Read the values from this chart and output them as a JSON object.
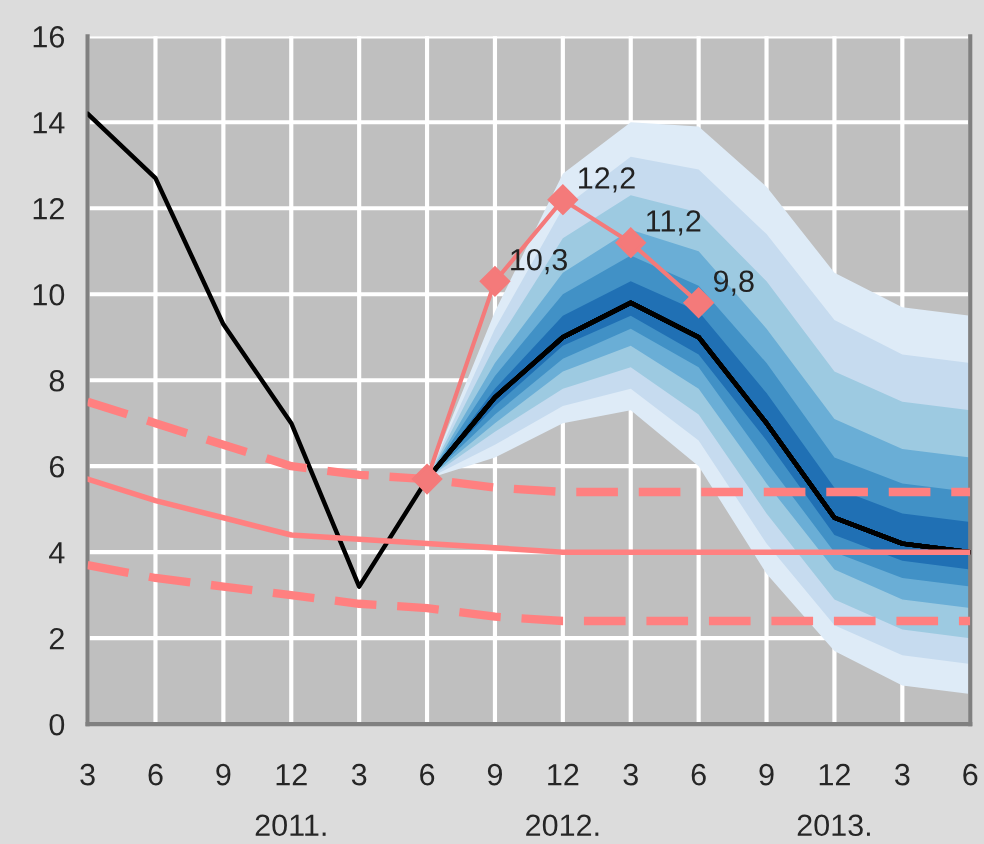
{
  "chart_data": {
    "type": "line",
    "categories": [
      "3",
      "6",
      "9",
      "12\n2011.",
      "3",
      "6",
      "9",
      "12\n2012.",
      "3",
      "6",
      "9",
      "12\n2013.",
      "3",
      "6"
    ],
    "ylim": [
      0,
      16
    ],
    "yticks": [
      0,
      2,
      4,
      6,
      8,
      10,
      12,
      14,
      16
    ],
    "grid": true,
    "series": [
      {
        "type": "line",
        "color": "#000000",
        "line_style": "solid",
        "values": [
          null,
          null,
          null,
          null,
          null,
          5.7,
          7.6,
          9.0,
          9.8,
          9.0,
          7.0,
          4.8,
          4.2,
          4.0
        ],
        "upper": [
          null,
          null,
          null,
          null,
          null,
          5.7,
          9.6,
          12.8,
          14.0,
          13.9,
          12.5,
          10.5,
          9.7,
          9.5
        ],
        "lower": [
          null,
          null,
          null,
          null,
          null,
          5.7,
          6.2,
          7.0,
          7.3,
          6.0,
          3.5,
          1.7,
          0.9,
          0.7
        ]
      },
      {
        "type": "line",
        "color": "#000000",
        "line_style": "solid",
        "values": [
          null,
          null,
          null,
          null,
          null,
          5.7,
          7.6,
          9.0,
          9.8,
          9.0,
          7.0,
          4.8,
          4.2,
          4.0
        ],
        "upper": [
          null,
          null,
          null,
          null,
          null,
          5.7,
          9.2,
          12.0,
          13.2,
          12.9,
          11.4,
          9.4,
          8.6,
          8.4
        ],
        "lower": [
          null,
          null,
          null,
          null,
          null,
          5.7,
          6.5,
          7.4,
          7.8,
          6.6,
          4.2,
          2.3,
          1.6,
          1.4
        ]
      },
      {
        "type": "line",
        "color": "#000000",
        "line_style": "solid",
        "values": [
          null,
          null,
          null,
          null,
          null,
          5.7,
          7.6,
          9.0,
          9.8,
          9.0,
          7.0,
          4.8,
          4.2,
          4.0
        ],
        "upper": [
          null,
          null,
          null,
          null,
          null,
          5.7,
          8.8,
          11.3,
          12.3,
          11.9,
          10.3,
          8.2,
          7.5,
          7.3
        ],
        "lower": [
          null,
          null,
          null,
          null,
          null,
          5.7,
          6.8,
          7.8,
          8.3,
          7.2,
          4.9,
          2.9,
          2.2,
          2.0
        ]
      },
      {
        "type": "line",
        "color": "#000000",
        "line_style": "solid",
        "values": [
          null,
          null,
          null,
          null,
          null,
          5.7,
          7.6,
          9.0,
          9.8,
          9.0,
          7.0,
          4.8,
          4.2,
          4.0
        ],
        "upper": [
          null,
          null,
          null,
          null,
          null,
          5.7,
          8.4,
          10.5,
          11.5,
          11.0,
          9.2,
          7.1,
          6.4,
          6.2
        ],
        "lower": [
          null,
          null,
          null,
          null,
          null,
          5.7,
          7.0,
          8.2,
          8.8,
          7.8,
          5.6,
          3.6,
          2.9,
          2.7
        ]
      },
      {
        "type": "line",
        "color": "#000000",
        "line_style": "solid",
        "values": [
          null,
          null,
          null,
          null,
          null,
          5.7,
          7.6,
          9.0,
          9.8,
          9.0,
          7.0,
          4.8,
          4.2,
          4.0
        ],
        "upper": [
          null,
          null,
          null,
          null,
          null,
          5.7,
          8.1,
          10.0,
          10.9,
          10.2,
          8.4,
          6.2,
          5.6,
          5.4
        ],
        "lower": [
          null,
          null,
          null,
          null,
          null,
          5.7,
          7.2,
          8.5,
          9.2,
          8.3,
          6.1,
          4.0,
          3.4,
          3.2
        ]
      },
      {
        "type": "line",
        "color": "#000000",
        "line_style": "solid",
        "values": [
          null,
          null,
          null,
          null,
          null,
          5.7,
          7.6,
          9.0,
          9.8,
          9.0,
          7.0,
          4.8,
          4.2,
          4.0
        ],
        "upper": [
          null,
          null,
          null,
          null,
          null,
          5.7,
          7.8,
          9.5,
          10.3,
          9.6,
          7.7,
          5.5,
          4.9,
          4.7
        ],
        "lower": [
          null,
          null,
          null,
          null,
          null,
          5.7,
          7.4,
          8.8,
          9.5,
          8.6,
          6.6,
          4.4,
          3.8,
          3.6
        ]
      },
      {
        "type": "line",
        "color": "#000000",
        "line_style": "solid",
        "values": [
          14.2,
          12.7,
          9.3,
          7.0,
          3.2,
          5.7,
          null,
          null,
          null,
          null,
          null,
          null,
          null,
          null
        ]
      },
      {
        "type": "line",
        "color": "#ff8080",
        "line_style": "dashed",
        "values": [
          7.5,
          7.0,
          6.5,
          6.0,
          5.8,
          5.7,
          5.5,
          5.4,
          5.4,
          5.4,
          5.4,
          5.4,
          5.4,
          5.4
        ]
      },
      {
        "type": "line",
        "color": "#ff8080",
        "line_style": "solid",
        "values": [
          5.7,
          5.2,
          4.8,
          4.4,
          4.3,
          4.2,
          4.1,
          4.0,
          4.0,
          4.0,
          4.0,
          4.0,
          4.0,
          4.0
        ]
      },
      {
        "type": "line",
        "color": "#ff8080",
        "line_style": "dashed",
        "values": [
          3.7,
          3.4,
          3.2,
          3.0,
          2.8,
          2.7,
          2.5,
          2.4,
          2.4,
          2.4,
          2.4,
          2.4,
          2.4,
          2.4
        ]
      },
      {
        "type": "line",
        "color": "#f47a7a",
        "line_style": "solid",
        "marker": "diamond",
        "values": [
          null,
          null,
          null,
          null,
          null,
          5.7,
          10.3,
          12.2,
          11.2,
          9.8,
          null,
          null,
          null,
          null
        ],
        "value_labels": [
          null,
          null,
          null,
          null,
          null,
          null,
          "10,3",
          "12,2",
          "11,2",
          "9,8",
          null,
          null,
          null,
          null
        ]
      }
    ]
  }
}
